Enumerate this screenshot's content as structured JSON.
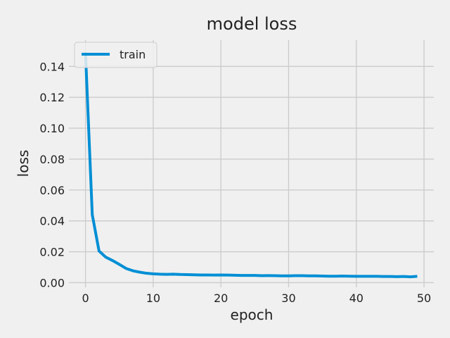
{
  "chart_data": {
    "type": "line",
    "title": "model loss",
    "xlabel": "epoch",
    "ylabel": "loss",
    "xlim": [
      -2.45,
      51.45
    ],
    "ylim": [
      -0.003,
      0.157
    ],
    "xticks": [
      0,
      10,
      20,
      30,
      40,
      50
    ],
    "xtick_labels": [
      "0",
      "10",
      "20",
      "30",
      "40",
      "50"
    ],
    "yticks": [
      0.0,
      0.02,
      0.04,
      0.06,
      0.08,
      0.1,
      0.12,
      0.14
    ],
    "ytick_labels": [
      "0.00",
      "0.02",
      "0.04",
      "0.06",
      "0.08",
      "0.10",
      "0.12",
      "0.14"
    ],
    "grid": true,
    "legend_position": "top-left",
    "series": [
      {
        "name": "train",
        "color": "#008fd5",
        "x": [
          0,
          1,
          2,
          3,
          4,
          5,
          6,
          7,
          8,
          9,
          10,
          11,
          12,
          13,
          14,
          15,
          16,
          17,
          18,
          19,
          20,
          21,
          22,
          23,
          24,
          25,
          26,
          27,
          28,
          29,
          30,
          31,
          32,
          33,
          34,
          35,
          36,
          37,
          38,
          39,
          40,
          41,
          42,
          43,
          44,
          45,
          46,
          47,
          48,
          49
        ],
        "y": [
          0.149,
          0.044,
          0.0205,
          0.0165,
          0.0143,
          0.0118,
          0.0092,
          0.0077,
          0.0068,
          0.0061,
          0.0057,
          0.0055,
          0.0054,
          0.0055,
          0.0053,
          0.0052,
          0.0051,
          0.005,
          0.005,
          0.0049,
          0.005,
          0.0049,
          0.0048,
          0.0047,
          0.0047,
          0.0047,
          0.0045,
          0.0046,
          0.0045,
          0.0044,
          0.0044,
          0.0045,
          0.0045,
          0.0044,
          0.0044,
          0.0043,
          0.0042,
          0.0042,
          0.0043,
          0.0042,
          0.0041,
          0.0041,
          0.0041,
          0.0041,
          0.004,
          0.004,
          0.0039,
          0.004,
          0.0038,
          0.0041
        ]
      }
    ]
  },
  "colors": {
    "background": "#f0f0f0",
    "grid": "#cbcbcb",
    "text": "#222222"
  }
}
